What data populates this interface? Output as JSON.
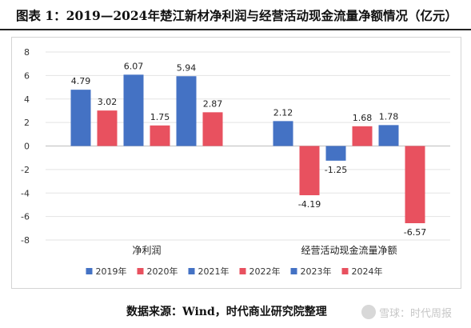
{
  "title": "图表 1：2019—2024年楚江新材净利润与经营活动现金流量净额情况（亿元）",
  "source": "数据来源：Wind，时代商业研究院整理",
  "watermark": {
    "icon": "snowball-logo-icon",
    "text": "雪球：时代周报"
  },
  "chart_data": {
    "type": "bar",
    "categories": [
      "净利润",
      "经营活动现金流量净额"
    ],
    "series": [
      {
        "name": "2019年",
        "color": "#4472C4",
        "values": [
          4.79,
          2.12
        ]
      },
      {
        "name": "2020年",
        "color": "#E8515F",
        "values": [
          3.02,
          -4.19
        ]
      },
      {
        "name": "2021年",
        "color": "#4472C4",
        "values": [
          6.07,
          -1.25
        ]
      },
      {
        "name": "2022年",
        "color": "#E8515F",
        "values": [
          1.75,
          1.68
        ]
      },
      {
        "name": "2023年",
        "color": "#4472C4",
        "values": [
          5.94,
          1.78
        ]
      },
      {
        "name": "2024年",
        "color": "#E8515F",
        "values": [
          2.87,
          -6.57
        ]
      }
    ],
    "ylim": [
      -8,
      8
    ],
    "yticks": [
      8,
      6,
      4,
      2,
      0,
      -2,
      -4,
      -6,
      -8
    ],
    "grid": true,
    "legend": "bottom",
    "data_labels": true
  }
}
